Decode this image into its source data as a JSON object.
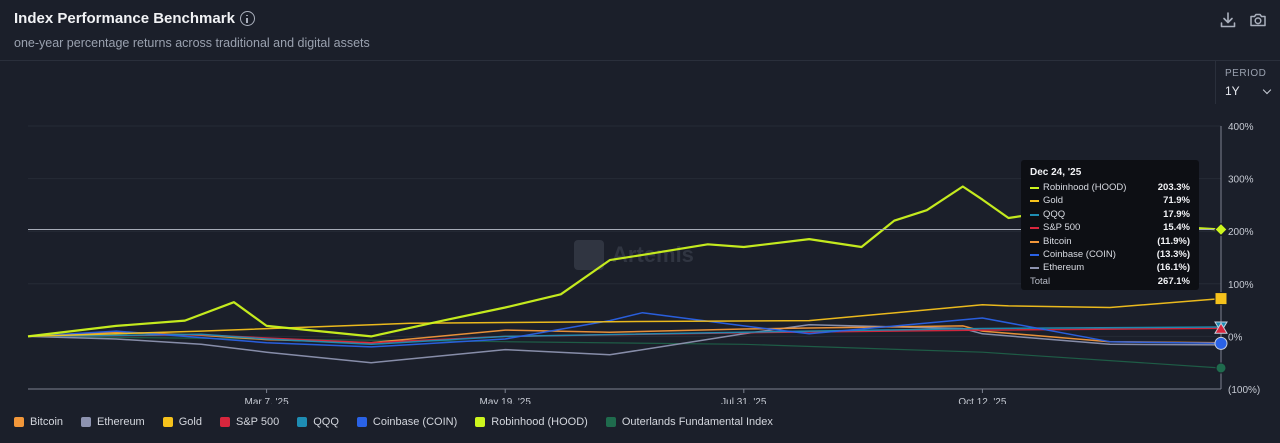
{
  "header": {
    "title": "Index Performance Benchmark",
    "subtitle": "one-year percentage returns across traditional and digital assets"
  },
  "period": {
    "label": "PERIOD",
    "value": "1Y"
  },
  "watermark": {
    "text": "Artemis"
  },
  "colors": {
    "background": "#1b1f2a",
    "bitcoin": "#f2973a",
    "ethereum": "#8d93b0",
    "gold": "#f6c21c",
    "sp500": "#d8263d",
    "qqq": "#1e8db3",
    "coinbase": "#2a62e6",
    "robinhood": "#cdf51e",
    "outerlands": "#1f6b4d"
  },
  "tooltip": {
    "date": "Dec 24, '25",
    "rows": [
      {
        "name": "Robinhood (HOOD)",
        "value": "203.3%",
        "color": "#cdf51e"
      },
      {
        "name": "Gold",
        "value": "71.9%",
        "color": "#f6c21c"
      },
      {
        "name": "QQQ",
        "value": "17.9%",
        "color": "#1e8db3"
      },
      {
        "name": "S&P 500",
        "value": "15.4%",
        "color": "#d8263d"
      },
      {
        "name": "Bitcoin",
        "value": "(11.9%)",
        "color": "#f2973a"
      },
      {
        "name": "Coinbase (COIN)",
        "value": "(13.3%)",
        "color": "#2a62e6"
      },
      {
        "name": "Ethereum",
        "value": "(16.1%)",
        "color": "#8d93b0"
      }
    ],
    "total_label": "Total",
    "total_value": "267.1%"
  },
  "chart_data": {
    "type": "line",
    "x_ticks": [
      "Mar 7, '25",
      "May 19, '25",
      "Jul 31, '25",
      "Oct 12, '25"
    ],
    "y_ticks": [
      "400%",
      "300%",
      "200%",
      "100%",
      "0%",
      "(100%)"
    ],
    "ylim": [
      -100,
      400
    ],
    "x_range": [
      "Dec 24, '24",
      "Dec 24, '25"
    ],
    "grid": true,
    "legend_position": "bottom-left",
    "series": [
      {
        "name": "Bitcoin",
        "color": "#f2973a",
        "dates": [
          "2024-12-24",
          "2025-01-20",
          "2025-02-15",
          "2025-03-07",
          "2025-04-08",
          "2025-05-19",
          "2025-06-20",
          "2025-07-31",
          "2025-08-20",
          "2025-10-06",
          "2025-10-12",
          "2025-11-20",
          "2025-12-24"
        ],
        "values": [
          0,
          8,
          2,
          -6,
          -12,
          12,
          8,
          14,
          16,
          20,
          10,
          -10,
          -11.9
        ]
      },
      {
        "name": "Ethereum",
        "color": "#8d93b0",
        "dates": [
          "2024-12-24",
          "2025-01-20",
          "2025-02-15",
          "2025-03-07",
          "2025-04-08",
          "2025-05-19",
          "2025-06-20",
          "2025-07-31",
          "2025-08-20",
          "2025-10-06",
          "2025-10-12",
          "2025-11-20",
          "2025-12-24"
        ],
        "values": [
          0,
          -5,
          -15,
          -30,
          -50,
          -25,
          -35,
          5,
          22,
          15,
          5,
          -15,
          -16.1
        ]
      },
      {
        "name": "Gold",
        "color": "#f6c21c",
        "dates": [
          "2024-12-24",
          "2025-02-15",
          "2025-04-20",
          "2025-06-20",
          "2025-08-20",
          "2025-10-12",
          "2025-10-20",
          "2025-11-20",
          "2025-12-24"
        ],
        "values": [
          0,
          10,
          25,
          28,
          30,
          60,
          58,
          55,
          71.9
        ]
      },
      {
        "name": "S&P 500",
        "color": "#d8263d",
        "dates": [
          "2024-12-24",
          "2025-02-15",
          "2025-03-07",
          "2025-04-08",
          "2025-05-19",
          "2025-07-31",
          "2025-10-12",
          "2025-12-24"
        ],
        "values": [
          0,
          3,
          -3,
          -12,
          0,
          7,
          12,
          15.4
        ]
      },
      {
        "name": "QQQ",
        "color": "#1e8db3",
        "dates": [
          "2024-12-24",
          "2025-02-15",
          "2025-03-07",
          "2025-04-08",
          "2025-05-19",
          "2025-07-31",
          "2025-10-12",
          "2025-12-24"
        ],
        "values": [
          0,
          4,
          -5,
          -15,
          0,
          8,
          15,
          17.9
        ]
      },
      {
        "name": "Coinbase (COIN)",
        "color": "#2a62e6",
        "dates": [
          "2024-12-24",
          "2025-01-20",
          "2025-03-07",
          "2025-04-08",
          "2025-05-19",
          "2025-06-20",
          "2025-06-30",
          "2025-07-31",
          "2025-08-20",
          "2025-10-12",
          "2025-11-20",
          "2025-12-24"
        ],
        "values": [
          0,
          10,
          -12,
          -20,
          -5,
          30,
          45,
          20,
          5,
          35,
          -10,
          -13.3
        ]
      },
      {
        "name": "Robinhood (HOOD)",
        "color": "#cdf51e",
        "dates": [
          "2024-12-24",
          "2025-01-20",
          "2025-02-10",
          "2025-02-25",
          "2025-03-07",
          "2025-04-08",
          "2025-04-30",
          "2025-05-19",
          "2025-06-05",
          "2025-06-20",
          "2025-06-30",
          "2025-07-20",
          "2025-07-31",
          "2025-08-20",
          "2025-09-05",
          "2025-09-15",
          "2025-09-25",
          "2025-10-06",
          "2025-10-12",
          "2025-10-20",
          "2025-11-05",
          "2025-11-20",
          "2025-12-05",
          "2025-12-24"
        ],
        "values": [
          0,
          20,
          30,
          65,
          20,
          0,
          30,
          55,
          80,
          145,
          155,
          175,
          170,
          185,
          170,
          220,
          240,
          285,
          260,
          225,
          240,
          200,
          210,
          203.3
        ]
      },
      {
        "name": "Outerlands Fundamental Index",
        "color": "#1f6b4d",
        "dates": [
          "2024-12-24",
          "2025-03-07",
          "2025-05-19",
          "2025-07-31",
          "2025-10-12",
          "2025-12-24"
        ],
        "values": [
          0,
          -5,
          -10,
          -15,
          -30,
          -60
        ]
      }
    ],
    "crosshair_date": "Dec 24, '25",
    "crosshair_value": 203.3
  }
}
